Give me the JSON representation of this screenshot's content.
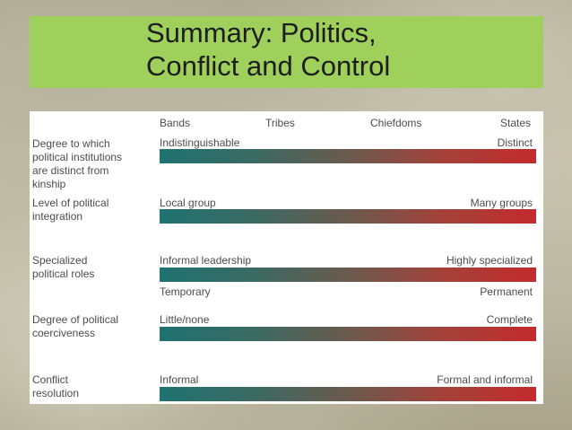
{
  "title": {
    "line1": "Summary: Politics,",
    "line2": "Conflict and Control"
  },
  "stages": [
    "Bands",
    "Tribes",
    "Chiefdoms",
    "States"
  ],
  "rows": [
    {
      "label": "Degree to which political institutions are distinct from kinship",
      "left": "Indistinguishable",
      "right": "Distinct"
    },
    {
      "label": "Level of political integration",
      "left": "Local group",
      "right": "Many groups"
    },
    {
      "label": "Specialized political roles",
      "left": "Informal leadership",
      "right": "Highly specialized",
      "left2": "Temporary",
      "right2": "Permanent"
    },
    {
      "label": "Degree of political coerciveness",
      "left": "Little/none",
      "right": "Complete"
    },
    {
      "label": "Conflict resolution",
      "left": "Informal",
      "right": "Formal and informal"
    }
  ],
  "colors": {
    "title_band": "#9fd05b",
    "gradient_start": "#1f7270",
    "gradient_end": "#c42a2c"
  }
}
